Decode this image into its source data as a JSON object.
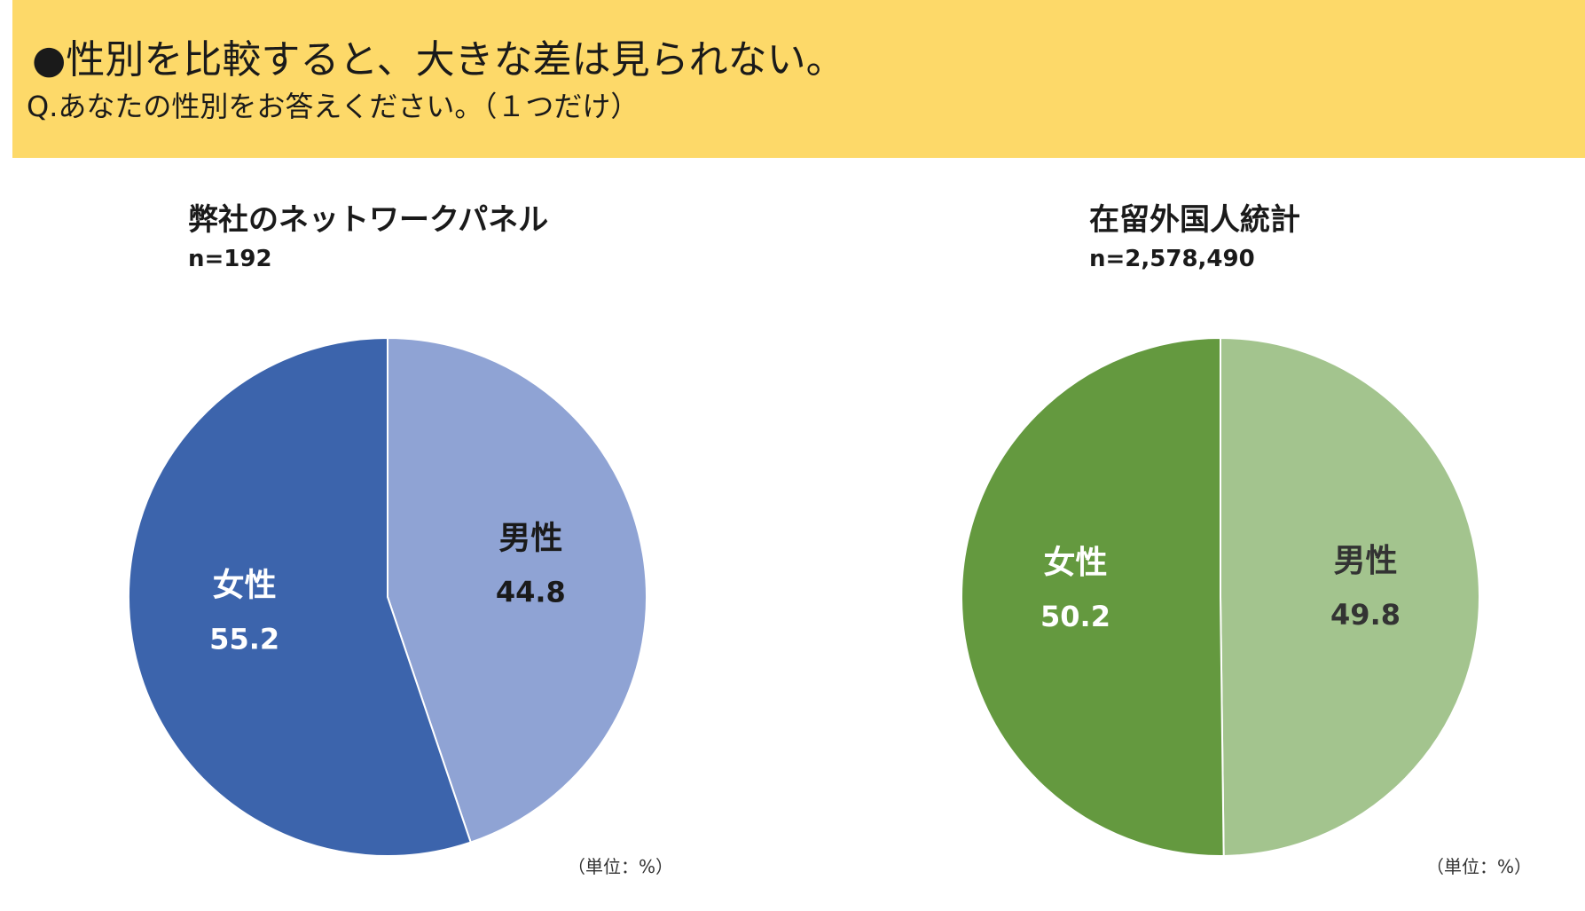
{
  "header": {
    "headline": "●性別を比較すると、大きな差は見られない。",
    "question": "Q.あなたの性別をお答えください。（１つだけ）",
    "background": "#FDD969"
  },
  "chart_data": [
    {
      "type": "pie",
      "title": "弊社のネットワークパネル",
      "n_label": "n=192",
      "unit_label": "（単位：%）",
      "categories": [
        "男性",
        "女性"
      ],
      "values": [
        44.8,
        55.2
      ],
      "colors": [
        "#8FA3D4",
        "#3C64AC"
      ],
      "label_colors": [
        "#1a1a1a",
        "#ffffff"
      ]
    },
    {
      "type": "pie",
      "title": "在留外国人統計",
      "n_label": "n=2,578,490",
      "unit_label": "（単位：%）",
      "categories": [
        "男性",
        "女性"
      ],
      "values": [
        49.8,
        50.2
      ],
      "colors": [
        "#A3C48E",
        "#64993F"
      ],
      "label_colors": [
        "#333333",
        "#ffffff"
      ]
    }
  ]
}
